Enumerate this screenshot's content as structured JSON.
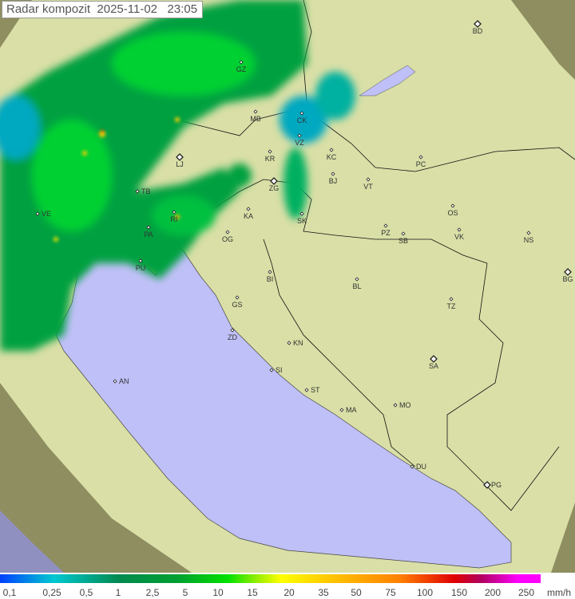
{
  "title": {
    "label": "Radar kompozit",
    "date": "2025-11-02",
    "time": "23:05"
  },
  "legend": {
    "unit": "mm/h",
    "labels": [
      "0,1",
      "0,25",
      "0,5",
      "1",
      "2,5",
      "5",
      "10",
      "15",
      "20",
      "35",
      "50",
      "75",
      "100",
      "150",
      "200",
      "250"
    ],
    "colors": [
      "#0040ff",
      "#00c8d0",
      "#008a50",
      "#00a030",
      "#00e000",
      "#ffff00",
      "#ff8000",
      "#e00000",
      "#ff00ff"
    ]
  },
  "map": {
    "colors": {
      "land": "#d9dfa6",
      "outside_coverage": "#8e8e60",
      "sea": "#c0c0f8",
      "precip_light": "#00b060",
      "precip_moderate": "#00e000",
      "precip_heavy": "#ff3000"
    },
    "cities": [
      "GZ",
      "BD",
      "MB",
      "CK",
      "VZ",
      "KR",
      "KC",
      "LJ",
      "PC",
      "BJ",
      "VT",
      "ZG",
      "TB",
      "VE",
      "KA",
      "OS",
      "SK",
      "RI",
      "PA",
      "PZ",
      "SB",
      "VK",
      "NS",
      "OG",
      "PU",
      "BG",
      "BI",
      "BL",
      "GS",
      "TZ",
      "ZD",
      "KN",
      "SA",
      "SI",
      "AN",
      "ST",
      "MA",
      "MO",
      "DU",
      "PG"
    ],
    "capitals": [
      "BD",
      "LJ",
      "ZG",
      "BG",
      "SA",
      "PG"
    ]
  }
}
